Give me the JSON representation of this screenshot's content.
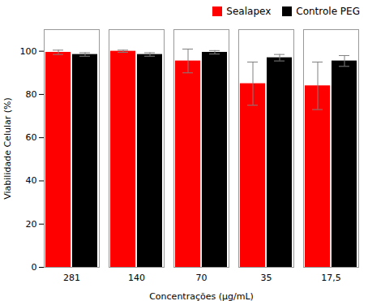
{
  "chart_data": {
    "type": "bar",
    "categories": [
      "281",
      "140",
      "70",
      "35",
      "17,5"
    ],
    "series": [
      {
        "name": "Sealapex",
        "color": "#FF0000",
        "values": [
          99.5,
          100.0,
          95.5,
          85.0,
          84.0
        ],
        "errors": [
          1.0,
          0.5,
          5.5,
          10.0,
          11.0
        ]
      },
      {
        "name": "Controle PEG",
        "color": "#000000",
        "values": [
          98.5,
          98.5,
          99.5,
          97.0,
          95.5
        ],
        "errors": [
          0.8,
          0.8,
          0.8,
          1.5,
          2.5
        ]
      }
    ],
    "xlabel": "Concentrações (µg/mL)",
    "ylabel": "Viabilidade Celular (%)",
    "ylim": [
      0,
      110
    ],
    "yticks": [
      0,
      20,
      40,
      60,
      80,
      100
    ],
    "legend": "upper right"
  }
}
